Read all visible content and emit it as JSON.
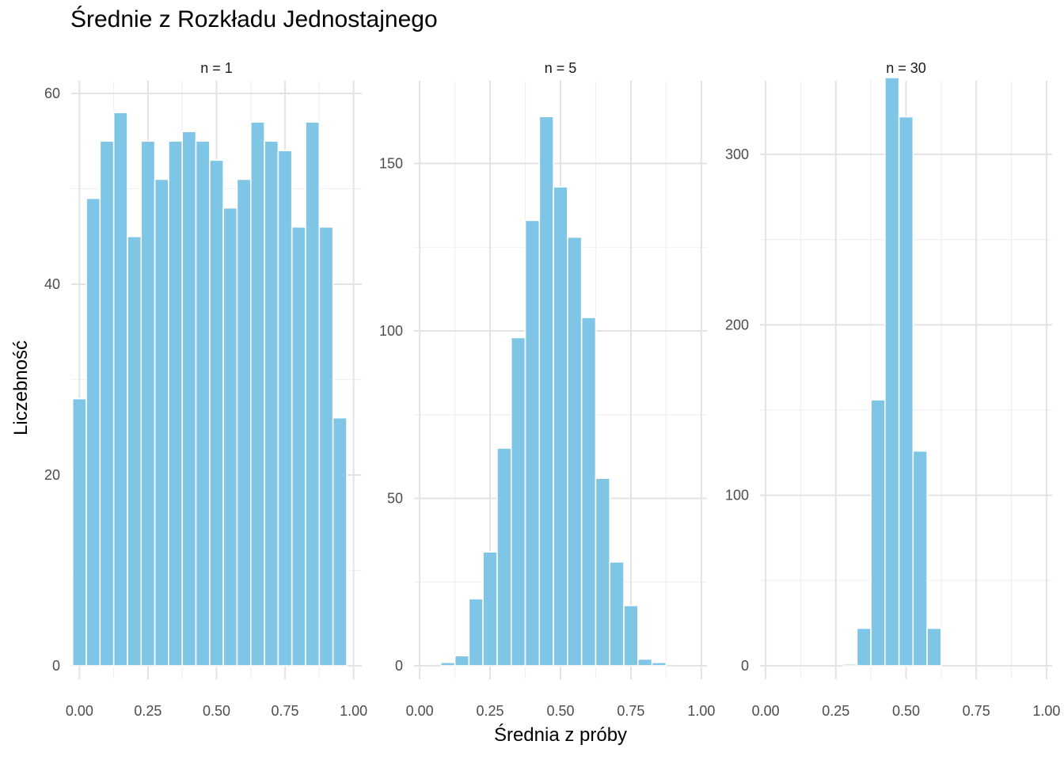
{
  "chart_data": {
    "type": "bar",
    "title": "Średnie z Rozkładu Jednostajnego",
    "xlabel": "Średnia z próby",
    "ylabel": "Liczebność",
    "grid": true,
    "bar_color": "#7EC5E6",
    "bar_border_color": "#FFFFFF",
    "panels": [
      {
        "label": "n = 1",
        "xlim": [
          -0.03,
          1.03
        ],
        "ylim": [
          0,
          60
        ],
        "x_ticks": [
          0.0,
          0.25,
          0.5,
          0.75,
          1.0
        ],
        "x_tick_labels": [
          "0.00",
          "0.25",
          "0.50",
          "0.75",
          "1.00"
        ],
        "y_ticks": [
          0,
          20,
          40,
          60
        ],
        "y_tick_labels": [
          "0",
          "20",
          "40",
          "60"
        ],
        "bin_width": 0.05,
        "bin_centers": [
          0.0,
          0.05,
          0.1,
          0.15,
          0.2,
          0.25,
          0.3,
          0.35,
          0.4,
          0.45,
          0.5,
          0.55,
          0.6,
          0.65,
          0.7,
          0.75,
          0.8,
          0.85,
          0.9,
          0.95,
          1.0
        ],
        "values": [
          28,
          49,
          55,
          58,
          45,
          55,
          51,
          55,
          56,
          55,
          53,
          48,
          51,
          57,
          55,
          54,
          46,
          57,
          46,
          26,
          0
        ]
      },
      {
        "label": "n = 5",
        "xlim": [
          -0.02,
          1.02
        ],
        "ylim": [
          0,
          165
        ],
        "x_ticks": [
          0.0,
          0.25,
          0.5,
          0.75,
          1.0
        ],
        "x_tick_labels": [
          "0.00",
          "0.25",
          "0.50",
          "0.75",
          "1.00"
        ],
        "y_ticks": [
          0,
          50,
          100,
          150
        ],
        "y_tick_labels": [
          "0",
          "50",
          "100",
          "150"
        ],
        "bin_width": 0.05,
        "bin_centers": [
          0.1,
          0.15,
          0.2,
          0.25,
          0.3,
          0.35,
          0.4,
          0.45,
          0.5,
          0.55,
          0.6,
          0.65,
          0.7,
          0.75,
          0.8,
          0.85,
          0.9
        ],
        "values": [
          1,
          3,
          20,
          34,
          65,
          98,
          133,
          164,
          143,
          128,
          104,
          56,
          31,
          18,
          2,
          1,
          0
        ]
      },
      {
        "label": "n = 30",
        "xlim": [
          -0.02,
          1.02
        ],
        "ylim": [
          0,
          345
        ],
        "x_ticks": [
          0.0,
          0.25,
          0.5,
          0.75,
          1.0
        ],
        "x_tick_labels": [
          "0.00",
          "0.25",
          "0.50",
          "0.75",
          "1.00"
        ],
        "y_ticks": [
          0,
          100,
          200,
          300
        ],
        "y_tick_labels": [
          "0",
          "100",
          "200",
          "300"
        ],
        "bin_width": 0.05,
        "bin_centers": [
          0.3,
          0.35,
          0.4,
          0.45,
          0.5,
          0.55,
          0.6
        ],
        "values": [
          1,
          22,
          156,
          345,
          322,
          126,
          22
        ]
      }
    ]
  }
}
